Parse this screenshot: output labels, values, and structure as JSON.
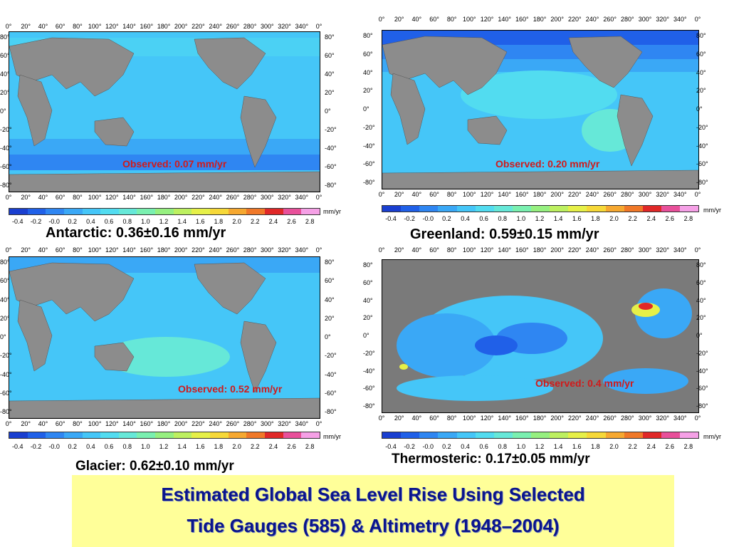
{
  "longitude_ticks": [
    "0°",
    "20°",
    "40°",
    "60°",
    "80°",
    "100°",
    "120°",
    "140°",
    "160°",
    "180°",
    "200°",
    "220°",
    "240°",
    "260°",
    "280°",
    "300°",
    "320°",
    "340°",
    "0°"
  ],
  "latitude_ticks": [
    "80°",
    "60°",
    "40°",
    "20°",
    "0°",
    "-20°",
    "-40°",
    "-60°",
    "-80°"
  ],
  "colorbar": {
    "labels": [
      "-0.4",
      "-0.2",
      "-0.0",
      "0.2",
      "0.4",
      "0.6",
      "0.8",
      "1.0",
      "1.2",
      "1.4",
      "1.6",
      "1.8",
      "2.0",
      "2.2",
      "2.4",
      "2.6",
      "2.8"
    ],
    "unit": "mm/yr",
    "colors": [
      "#1a3fd0",
      "#2060e8",
      "#2f86f2",
      "#3aa8f6",
      "#45c6f8",
      "#52dcf0",
      "#66e8d8",
      "#7af0b0",
      "#96f080",
      "#bdf060",
      "#e6f048",
      "#f6d838",
      "#f6a830",
      "#f07828",
      "#e02828",
      "#e8509a",
      "#f5a0e6"
    ]
  },
  "panels": [
    {
      "id": "antarctic",
      "observed": "Observed: 0.07 mm/yr",
      "caption": "Antarctic: 0.36±0.16 mm/yr"
    },
    {
      "id": "greenland",
      "observed": "Observed: 0.20 mm/yr",
      "caption": "Greenland: 0.59±0.15 mm/yr"
    },
    {
      "id": "glacier",
      "observed": "Observed: 0.52 mm/yr",
      "caption": "Glacier: 0.62±0.10 mm/yr"
    },
    {
      "id": "thermosteric",
      "observed": "Observed: 0.4 mm/yr",
      "caption": "Thermosteric: 0.17±0.05 mm/yr"
    }
  ],
  "title": {
    "line1": "Estimated Global Sea Level Rise Using Selected",
    "line2": "Tide Gauges (585) & Altimetry (1948–2004)"
  }
}
